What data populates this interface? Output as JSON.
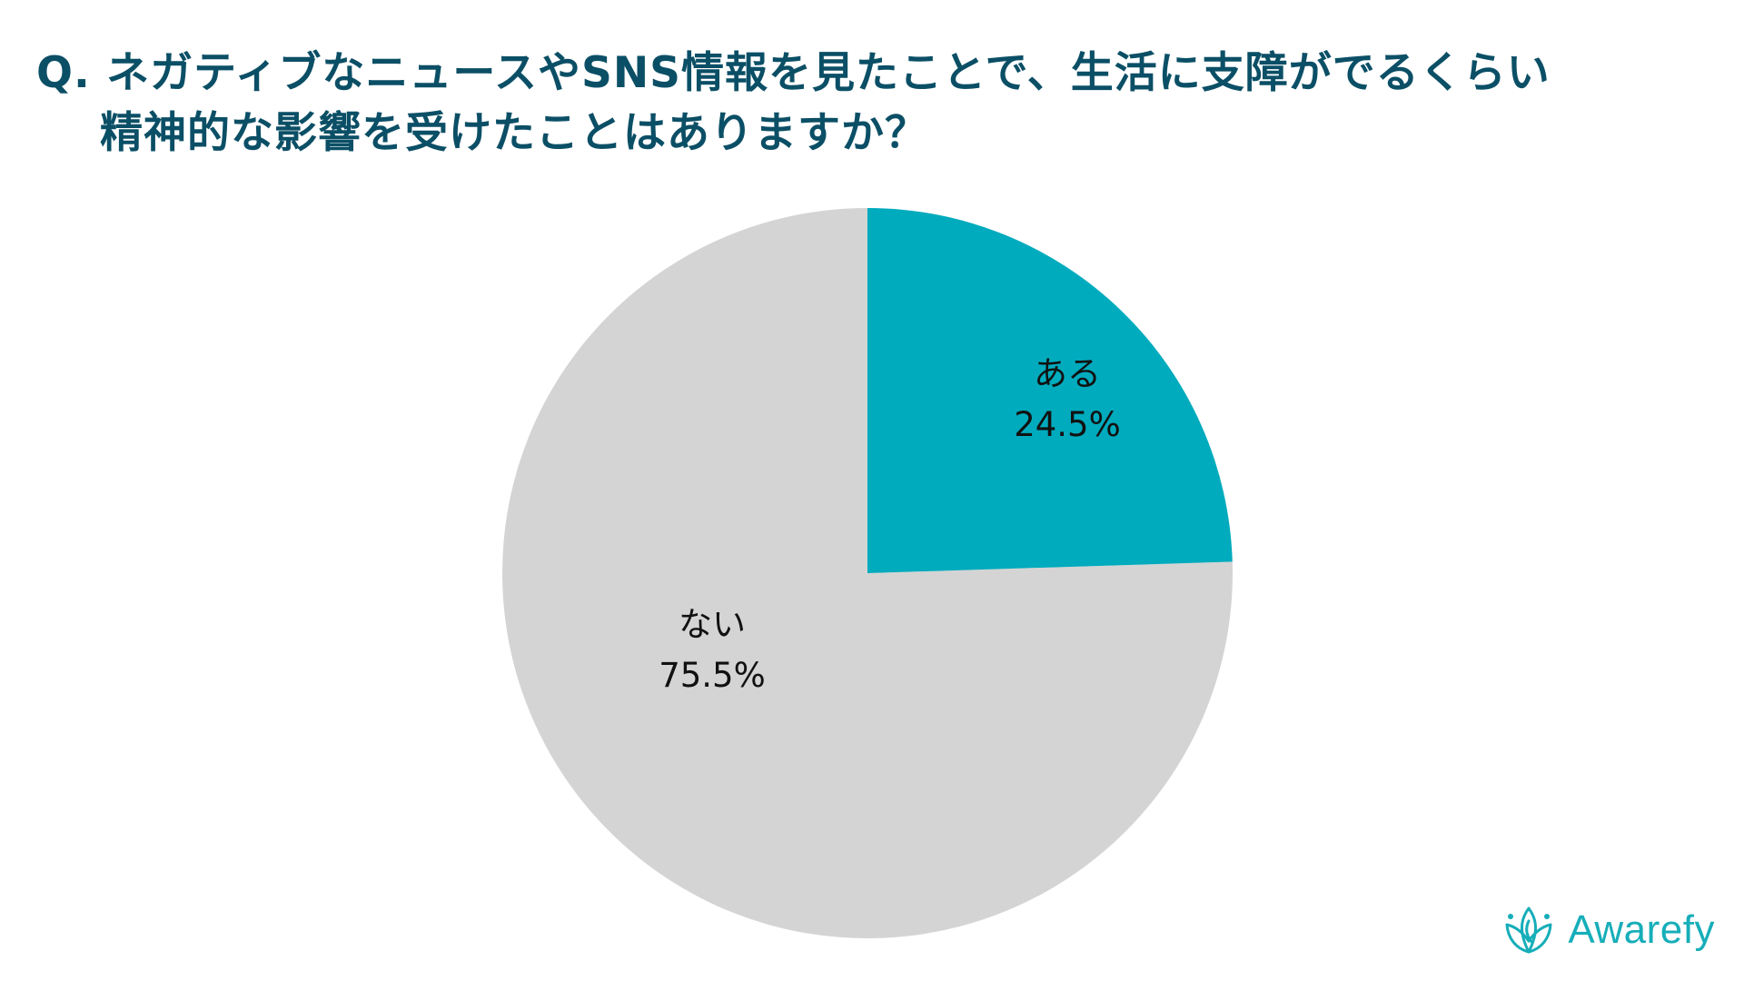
{
  "title": {
    "line1": "Q. ネガティブなニュースやSNS情報を見たことで、生活に支障がでるくらい",
    "line2": "精神的な影響を受けたことはありますか？"
  },
  "chart_data": {
    "type": "pie",
    "title": "Q. ネガティブなニュースやSNS情報を見たことで、生活に支障がでるくらい精神的な影響を受けたことはありますか？",
    "categories": [
      "ある",
      "ない"
    ],
    "values": [
      24.5,
      75.5
    ],
    "unit": "%",
    "colors": [
      "#00abbd",
      "#d4d4d4"
    ],
    "start_angle": "12 o'clock, clockwise",
    "legend": "none (labels inside slices)"
  },
  "labels": [
    {
      "name": "ある",
      "value": "24.5%"
    },
    {
      "name": "ない",
      "value": "75.5%"
    }
  ],
  "colors": {
    "title": "#0b4f66",
    "accent": "#00abbd",
    "other": "#d4d4d4",
    "logo": "#16aeb9"
  },
  "logo": {
    "text": "Awarefy",
    "icon": "lotus-icon"
  }
}
